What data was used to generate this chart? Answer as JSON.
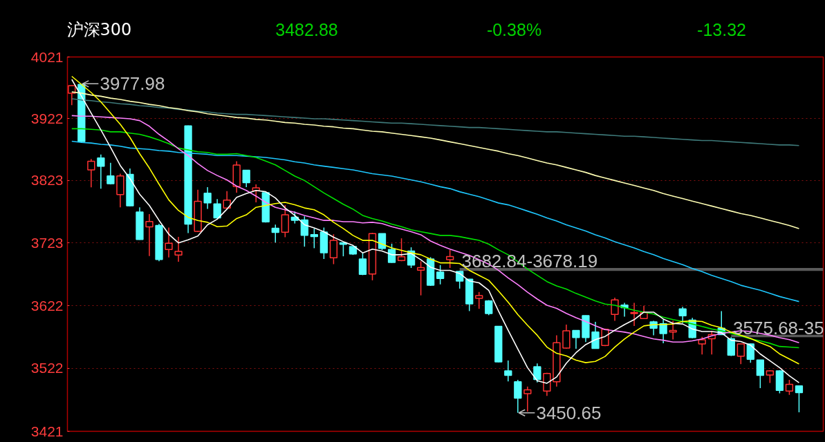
{
  "chart_data": {
    "type": "candlestick",
    "title": "沪深300",
    "annotations": [
      "3482.88",
      "-0.38%",
      "-13.32",
      "3977.98",
      "3450.65"
    ],
    "categories": [
      null,
      null,
      null,
      null,
      null,
      null,
      null,
      null,
      null,
      null,
      null,
      null,
      null,
      null,
      null,
      null,
      null,
      null,
      null,
      null,
      null,
      null,
      null,
      null,
      null,
      null,
      null,
      null,
      null,
      null,
      null,
      null,
      null,
      null,
      null,
      null,
      null,
      null,
      null,
      null,
      null,
      null,
      null,
      null,
      null,
      null,
      null,
      null,
      null,
      null,
      null,
      null,
      null,
      null,
      null,
      null,
      null,
      null,
      null,
      null,
      null,
      null,
      null,
      null,
      null,
      null,
      null,
      null,
      null,
      null,
      null,
      null,
      null,
      null,
      null,
      null
    ],
    "ylim": [
      3421,
      4021
    ],
    "yticks": [
      4021,
      3922,
      3823,
      3723,
      3622,
      3522,
      3421
    ],
    "grid": "y",
    "tick_labels": "y",
    "bands": [
      {
        "axis": "y",
        "from": 3678.19,
        "to": 3682.84,
        "label": "3682.84-3678.19",
        "color": "#5a5a5a"
      },
      {
        "axis": "y",
        "from": 3571.9,
        "to": 3575.68,
        "label": "3575.68-35",
        "color": "#5a5a5a"
      }
    ],
    "ohlc": [
      [
        3962.9,
        3975.5,
        3943.8,
        3975.1
      ],
      [
        3977.0,
        3977.98,
        3884.5,
        3885.5
      ],
      [
        3840.1,
        3857.4,
        3812.0,
        3853.8
      ],
      [
        3859.2,
        3864.6,
        3809.9,
        3845.9
      ],
      [
        3830.4,
        3851.3,
        3816.7,
        3817.8
      ],
      [
        3800.5,
        3834.0,
        3780.0,
        3830.4
      ],
      [
        3832.9,
        3842.3,
        3781.8,
        3782.5
      ],
      [
        3772.4,
        3780.0,
        3727.8,
        3728.5
      ],
      [
        3748.7,
        3769.2,
        3701.9,
        3757.3
      ],
      [
        3750.8,
        3753.7,
        3693.6,
        3696.5
      ],
      [
        3712.3,
        3747.6,
        3699.7,
        3722.4
      ],
      [
        3703.7,
        3732.5,
        3692.9,
        3709.4
      ],
      [
        3910.7,
        3911.0,
        3738.6,
        3753.0
      ],
      [
        3741.5,
        3808.1,
        3740.4,
        3789.7
      ],
      [
        3802.7,
        3812.4,
        3777.5,
        3787.2
      ],
      [
        3785.4,
        3793.3,
        3762.0,
        3763.1
      ],
      [
        3778.9,
        3805.9,
        3777.1,
        3791.5
      ],
      [
        3813.5,
        3853.8,
        3803.4,
        3847.7
      ],
      [
        3839.4,
        3839.8,
        3812.4,
        3819.6
      ],
      [
        3806.6,
        3816.7,
        3787.9,
        3811.3
      ],
      [
        3803.4,
        3804.1,
        3755.5,
        3756.6
      ],
      [
        3746.5,
        3752.3,
        3723.5,
        3739.7
      ],
      [
        3740.0,
        3783.6,
        3732.1,
        3768.1
      ],
      [
        3764.2,
        3773.5,
        3754.1,
        3759.1
      ],
      [
        3759.8,
        3765.6,
        3717.0,
        3735.0
      ],
      [
        3736.1,
        3745.8,
        3714.5,
        3733.2
      ],
      [
        3740.4,
        3747.6,
        3697.2,
        3707.3
      ],
      [
        3699.0,
        3736.8,
        3688.9,
        3727.1
      ],
      [
        3723.1,
        3723.8,
        3701.5,
        3720.6
      ],
      [
        3717.0,
        3717.4,
        3703.7,
        3705.1
      ],
      [
        3697.2,
        3706.2,
        3671.3,
        3672.7
      ],
      [
        3673.1,
        3739.0,
        3663.0,
        3737.9
      ],
      [
        3737.9,
        3738.2,
        3711.6,
        3714.1
      ],
      [
        3712.3,
        3721.7,
        3691.1,
        3691.8
      ],
      [
        3694.7,
        3730.3,
        3693.6,
        3700.8
      ],
      [
        3709.8,
        3715.9,
        3682.8,
        3687.5
      ],
      [
        3679.2,
        3693.6,
        3638.9,
        3683.5
      ],
      [
        3697.2,
        3700.1,
        3654.0,
        3655.1
      ],
      [
        3676.3,
        3687.5,
        3656.5,
        3665.9
      ],
      [
        3696.1,
        3711.6,
        3682.84,
        3701.2
      ],
      [
        3677.4,
        3678.19,
        3649.7,
        3661.9
      ],
      [
        3664.8,
        3665.2,
        3613.7,
        3625.2
      ],
      [
        3634.2,
        3644.3,
        3617.3,
        3638.5
      ],
      [
        3629.9,
        3631.3,
        3607.2,
        3609.7
      ],
      [
        3589.2,
        3589.6,
        3531.6,
        3532.3
      ],
      [
        3517.9,
        3534.5,
        3501.0,
        3510.7
      ],
      [
        3500.3,
        3503.5,
        3450.65,
        3474.0
      ],
      [
        3481.2,
        3492.7,
        3452.5,
        3487.3
      ],
      [
        3524.4,
        3529.8,
        3499.2,
        3503.9
      ],
      [
        3485.5,
        3514.7,
        3477.6,
        3513.6
      ],
      [
        3500.3,
        3574.8,
        3492.7,
        3562.9
      ],
      [
        3554.3,
        3592.1,
        3553.2,
        3582.0
      ],
      [
        3582.7,
        3583.0,
        3553.2,
        3571.2
      ],
      [
        3606.5,
        3606.8,
        3564.0,
        3571.2
      ],
      [
        3580.2,
        3596.4,
        3553.2,
        3553.9
      ],
      [
        3558.6,
        3585.6,
        3557.5,
        3584.5
      ],
      [
        3608.3,
        3635.3,
        3598.2,
        3631.7
      ],
      [
        3623.4,
        3627.0,
        3604.7,
        3619.1
      ],
      [
        3609.7,
        3627.0,
        3589.9,
        3611.5
      ],
      [
        3601.8,
        3622.3,
        3601.4,
        3611.5
      ],
      [
        3596.4,
        3598.2,
        3574.8,
        3586.3
      ],
      [
        3593.5,
        3600.0,
        3562.2,
        3577.7
      ],
      [
        3580.2,
        3598.2,
        3568.3,
        3582.7
      ],
      [
        3617.3,
        3620.5,
        3594.6,
        3606.1
      ],
      [
        3599.3,
        3602.9,
        3570.1,
        3571.2
      ],
      [
        3561.1,
        3572.3,
        3544.2,
        3567.6
      ],
      [
        3569.4,
        3582.0,
        3544.2,
        3575.9
      ],
      [
        3586.3,
        3613.7,
        3575.68,
        3575.9
      ],
      [
        3569.4,
        3571.9,
        3541.7,
        3543.1
      ],
      [
        3541.3,
        3561.5,
        3528.7,
        3561.1
      ],
      [
        3561.1,
        3561.5,
        3530.9,
        3536.3
      ],
      [
        3535.2,
        3535.6,
        3490.2,
        3510.7
      ],
      [
        3511.1,
        3519.0,
        3498.5,
        3517.9
      ],
      [
        3517.9,
        3519.0,
        3481.9,
        3486.6
      ],
      [
        3485.5,
        3503.5,
        3479.4,
        3496.2
      ],
      [
        3493.8,
        3494.2,
        3451.5,
        3482.88
      ]
    ],
    "colors": [
      "#ff3232",
      "#54ffff",
      "#ff3232",
      "#54ffff",
      "#54ffff",
      "#ff3232",
      "#54ffff",
      "#54ffff",
      "#ff3232",
      "#54ffff",
      "#ff3232",
      "#ff3232",
      "#54ffff",
      "#ff3232",
      "#54ffff",
      "#54ffff",
      "#ff3232",
      "#ff3232",
      "#54ffff",
      "#ff3232",
      "#54ffff",
      "#54ffff",
      "#ff3232",
      "#54ffff",
      "#54ffff",
      "#54ffff",
      "#54ffff",
      "#ff3232",
      "#54ffff",
      "#54ffff",
      "#54ffff",
      "#ff3232",
      "#54ffff",
      "#54ffff",
      "#ff3232",
      "#54ffff",
      "#ff3232",
      "#54ffff",
      "#54ffff",
      "#ff3232",
      "#54ffff",
      "#54ffff",
      "#ff3232",
      "#54ffff",
      "#54ffff",
      "#54ffff",
      "#54ffff",
      "#ff3232",
      "#54ffff",
      "#ff3232",
      "#ff3232",
      "#ff3232",
      "#54ffff",
      "#54ffff",
      "#54ffff",
      "#ff3232",
      "#ff3232",
      "#54ffff",
      "#ff3232",
      "#ff3232",
      "#54ffff",
      "#54ffff",
      "#ff3232",
      "#54ffff",
      "#54ffff",
      "#ff3232",
      "#ff3232",
      "#54ffff",
      "#54ffff",
      "#ff3232",
      "#54ffff",
      "#54ffff",
      "#ff3232",
      "#54ffff",
      "#ff3232",
      "#54ffff"
    ],
    "series": [
      {
        "type": "line",
        "color": "#3e7a7a",
        "values": [
          3954,
          3952,
          3951,
          3949,
          3948,
          3946,
          3945,
          3943,
          3942,
          3940,
          3939,
          3937,
          3936,
          3934,
          3933,
          3931,
          3930,
          3929,
          3929,
          3928,
          3927,
          3926,
          3925,
          3924,
          3923,
          3922,
          3922,
          3921,
          3920,
          3919,
          3918,
          3917,
          3916,
          3915,
          3915,
          3914,
          3913,
          3912,
          3911,
          3910,
          3909,
          3908,
          3908,
          3907,
          3906,
          3905,
          3904,
          3903,
          3902,
          3901,
          3901,
          3900,
          3899,
          3898,
          3897,
          3896,
          3895,
          3894,
          3894,
          3893,
          3892,
          3891,
          3890,
          3889,
          3888,
          3887,
          3887,
          3886,
          3885,
          3884,
          3883,
          3882,
          3881,
          3880,
          3880,
          3879
        ]
      },
      {
        "type": "line",
        "color": "#ffffb4",
        "values": [
          3965,
          3963,
          3960,
          3958,
          3955,
          3953,
          3950,
          3948,
          3945,
          3943,
          3940,
          3938,
          3935,
          3933,
          3930,
          3928,
          3926,
          3924,
          3923,
          3921,
          3920,
          3918,
          3916,
          3915,
          3913,
          3912,
          3910,
          3909,
          3907,
          3906,
          3904,
          3902,
          3901,
          3899,
          3897,
          3895,
          3893,
          3891,
          3888,
          3885,
          3882,
          3879,
          3876,
          3873,
          3870,
          3866,
          3863,
          3859,
          3855,
          3851,
          3848,
          3844,
          3840,
          3836,
          3831,
          3827,
          3823,
          3819,
          3815,
          3811,
          3807,
          3802,
          3798,
          3794,
          3790,
          3786,
          3782,
          3778,
          3774,
          3770,
          3767,
          3763,
          3759,
          3755,
          3751,
          3746
        ]
      },
      {
        "type": "line",
        "color": "#1ec8ff",
        "values": [
          3886,
          3884,
          3883,
          3881,
          3880,
          3878,
          3875,
          3874,
          3873,
          3871,
          3870,
          3868,
          3867,
          3866,
          3865,
          3863,
          3863,
          3863,
          3862,
          3861,
          3860,
          3858,
          3856,
          3853,
          3851,
          3848,
          3846,
          3844,
          3842,
          3840,
          3837,
          3834,
          3832,
          3830,
          3827,
          3824,
          3821,
          3817,
          3813,
          3810,
          3805,
          3801,
          3797,
          3792,
          3787,
          3784,
          3779,
          3774,
          3769,
          3763,
          3758,
          3752,
          3747,
          3742,
          3736,
          3731,
          3725,
          3720,
          3715,
          3709,
          3704,
          3698,
          3693,
          3688,
          3682,
          3677,
          3671,
          3666,
          3661,
          3655,
          3651,
          3647,
          3642,
          3637,
          3633,
          3629
        ]
      },
      {
        "type": "line",
        "color": "#00e000",
        "values": [
          3906,
          3906,
          3905,
          3904,
          3901,
          3901,
          3899,
          3897,
          3893,
          3888,
          3882,
          3875,
          3872,
          3869,
          3868,
          3865,
          3865,
          3866,
          3863,
          3860,
          3854,
          3848,
          3839,
          3830,
          3823,
          3813,
          3803,
          3794,
          3785,
          3777,
          3767,
          3762,
          3758,
          3753,
          3749,
          3744,
          3741,
          3738,
          3735,
          3735,
          3733,
          3730,
          3727,
          3721,
          3712,
          3704,
          3693,
          3681,
          3671,
          3661,
          3654,
          3649,
          3642,
          3636,
          3630,
          3625,
          3623,
          3619,
          3615,
          3612,
          3609,
          3604,
          3600,
          3597,
          3593,
          3589,
          3585,
          3582,
          3578,
          3574,
          3569,
          3566,
          3562,
          3557,
          3556,
          3555
        ]
      },
      {
        "type": "line",
        "color": "#ff80ff",
        "values": [
          3927,
          3926,
          3926,
          3925,
          3924,
          3923,
          3922,
          3919,
          3910,
          3897,
          3886,
          3874,
          3863,
          3850,
          3839,
          3831,
          3824,
          3814,
          3807,
          3798,
          3788,
          3780,
          3776,
          3772,
          3767,
          3763,
          3759,
          3759,
          3757,
          3757,
          3755,
          3756,
          3754,
          3749,
          3745,
          3741,
          3736,
          3726,
          3719,
          3713,
          3708,
          3703,
          3696,
          3689,
          3679,
          3667,
          3656,
          3644,
          3633,
          3623,
          3618,
          3610,
          3603,
          3597,
          3590,
          3584,
          3582,
          3580,
          3577,
          3573,
          3569,
          3567,
          3564,
          3564,
          3566,
          3569,
          3574,
          3578,
          3580,
          3582,
          3581,
          3578,
          3575,
          3571,
          3568,
          3563
        ]
      },
      {
        "type": "line",
        "color": "#ffff00",
        "values": [
          3990,
          3977,
          3964,
          3949,
          3931,
          3913,
          3892,
          3866,
          3843,
          3817,
          3792,
          3775,
          3764,
          3759,
          3756,
          3749,
          3750,
          3762,
          3768,
          3780,
          3783,
          3786,
          3788,
          3784,
          3779,
          3776,
          3768,
          3756,
          3746,
          3735,
          3727,
          3727,
          3721,
          3715,
          3711,
          3707,
          3704,
          3697,
          3691,
          3691,
          3690,
          3679,
          3671,
          3663,
          3646,
          3628,
          3608,
          3591,
          3575,
          3556,
          3546,
          3542,
          3535,
          3531,
          3533,
          3541,
          3556,
          3569,
          3580,
          3590,
          3592,
          3592,
          3593,
          3597,
          3598,
          3597,
          3591,
          3587,
          3580,
          3575,
          3570,
          3563,
          3557,
          3545,
          3537,
          3529
        ]
      },
      {
        "type": "line",
        "color": "#ffffff",
        "values": [
          3985,
          3958,
          3931,
          3904,
          3876,
          3847,
          3826,
          3801,
          3783,
          3759,
          3737,
          3723,
          3728,
          3734,
          3752,
          3761,
          3777,
          3796,
          3802,
          3807,
          3805,
          3795,
          3779,
          3767,
          3752,
          3747,
          3741,
          3732,
          3725,
          3719,
          3707,
          3713,
          3710,
          3704,
          3704,
          3706,
          3696,
          3684,
          3679,
          3679,
          3674,
          3662,
          3659,
          3647,
          3614,
          3583,
          3553,
          3523,
          3502,
          3498,
          3508,
          3530,
          3547,
          3560,
          3568,
          3573,
          3583,
          3592,
          3600,
          3612,
          3612,
          3601,
          3594,
          3593,
          3585,
          3581,
          3581,
          3579,
          3567,
          3565,
          3559,
          3545,
          3534,
          3523,
          3510,
          3499
        ]
      }
    ]
  }
}
